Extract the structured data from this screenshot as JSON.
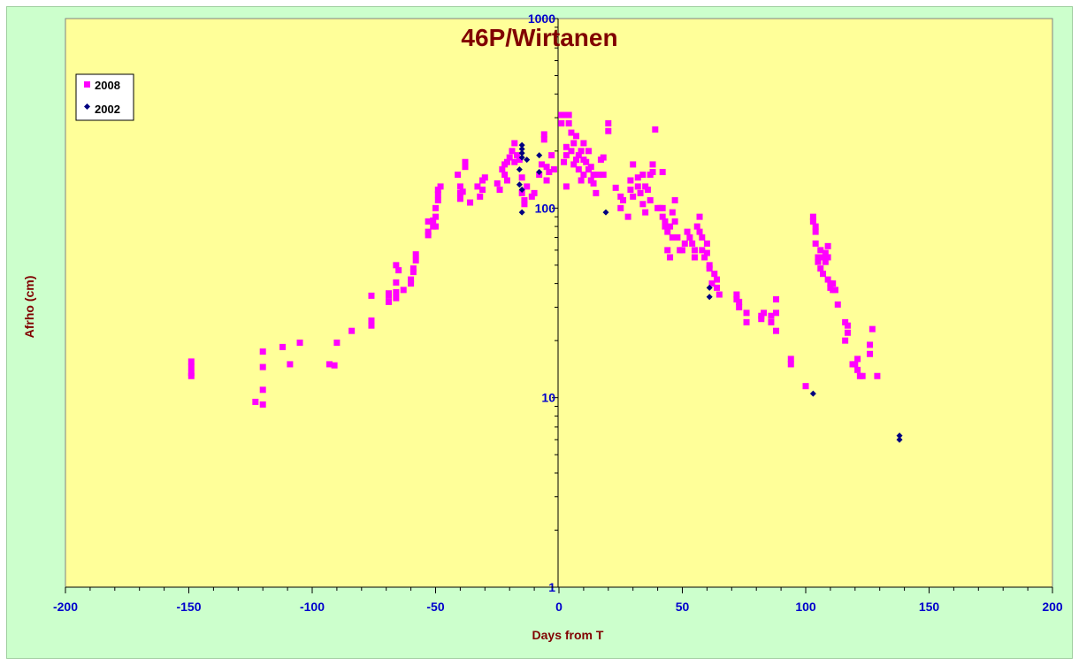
{
  "chart_data": {
    "type": "scatter",
    "title": "46P/Wirtanen",
    "xlabel": "Days from  T",
    "ylabel": "Afrho (cm)",
    "xlim": [
      -200,
      200
    ],
    "ylim": [
      1,
      1000
    ],
    "yscale": "log",
    "x_ticks": [
      -200,
      -150,
      -100,
      -50,
      0,
      50,
      100,
      150,
      200
    ],
    "x_tick_labels": [
      "-200",
      "-150",
      "-100",
      "-50",
      "0",
      "50",
      "100",
      "150",
      "200"
    ],
    "y_ticks": [
      1,
      10,
      100,
      1000
    ],
    "y_tick_labels": [
      "1",
      "10",
      "100",
      "1000"
    ],
    "grid": false,
    "legend_position": "top-left",
    "colors": {
      "plot_bg": "#ffff99",
      "frame_bg": "#ccffcc",
      "s2008": "#ff00ff",
      "s2002": "#000080"
    },
    "series": [
      {
        "name": "2008",
        "marker": "square",
        "color": "#ff00ff",
        "points": [
          [
            -149,
            15.5
          ],
          [
            -149,
            14.5
          ],
          [
            -149,
            13.5
          ],
          [
            -149,
            13
          ],
          [
            -123,
            9.5
          ],
          [
            -120,
            9.2
          ],
          [
            -120,
            11
          ],
          [
            -120,
            14.5
          ],
          [
            -120,
            17.5
          ],
          [
            -112,
            18.5
          ],
          [
            -109,
            15
          ],
          [
            -105,
            19.5
          ],
          [
            -93,
            15
          ],
          [
            -91,
            14.8
          ],
          [
            -90,
            19.5
          ],
          [
            -84,
            22.5
          ],
          [
            -76,
            24
          ],
          [
            -76,
            25.5
          ],
          [
            -76,
            34.5
          ],
          [
            -69,
            32
          ],
          [
            -69,
            34.5
          ],
          [
            -69,
            35.5
          ],
          [
            -66,
            33.5
          ],
          [
            -66,
            36
          ],
          [
            -66,
            40.5
          ],
          [
            -66,
            50
          ],
          [
            -65,
            47
          ],
          [
            -63,
            37
          ],
          [
            -60,
            40
          ],
          [
            -60,
            42
          ],
          [
            -59,
            46
          ],
          [
            -59,
            48
          ],
          [
            -58,
            53
          ],
          [
            -58,
            57
          ],
          [
            -53,
            72
          ],
          [
            -53,
            75
          ],
          [
            -53,
            85
          ],
          [
            -51,
            80
          ],
          [
            -51,
            86
          ],
          [
            -50,
            80
          ],
          [
            -50,
            90
          ],
          [
            -50,
            100
          ],
          [
            -49,
            110
          ],
          [
            -49,
            118
          ],
          [
            -49,
            125
          ],
          [
            -48,
            130
          ],
          [
            -41,
            150
          ],
          [
            -40,
            130
          ],
          [
            -40,
            120
          ],
          [
            -40,
            112
          ],
          [
            -39,
            122
          ],
          [
            -38,
            175
          ],
          [
            -38,
            165
          ],
          [
            -36,
            107
          ],
          [
            -33,
            130
          ],
          [
            -32,
            115
          ],
          [
            -31,
            140
          ],
          [
            -31,
            125
          ],
          [
            -30,
            145
          ],
          [
            -25,
            135
          ],
          [
            -24,
            125
          ],
          [
            -23,
            160
          ],
          [
            -22,
            170
          ],
          [
            -22,
            150
          ],
          [
            -21,
            175
          ],
          [
            -21,
            140
          ],
          [
            -20,
            185
          ],
          [
            -19,
            200
          ],
          [
            -18,
            220
          ],
          [
            -18,
            175
          ],
          [
            -17,
            190
          ],
          [
            -16,
            180
          ],
          [
            -15,
            145
          ],
          [
            -15,
            120
          ],
          [
            -14,
            105
          ],
          [
            -14,
            110
          ],
          [
            -13,
            130
          ],
          [
            -11,
            115
          ],
          [
            -10,
            120
          ],
          [
            -8,
            150
          ],
          [
            -7,
            170
          ],
          [
            -6,
            230
          ],
          [
            -6,
            245
          ],
          [
            -5,
            165
          ],
          [
            -5,
            140
          ],
          [
            -4,
            155
          ],
          [
            -3,
            190
          ],
          [
            -2,
            160
          ],
          [
            1,
            310
          ],
          [
            1,
            280
          ],
          [
            2,
            310
          ],
          [
            2,
            175
          ],
          [
            3,
            190
          ],
          [
            3,
            210
          ],
          [
            3,
            130
          ],
          [
            4,
            280
          ],
          [
            4,
            310
          ],
          [
            5,
            250
          ],
          [
            5,
            200
          ],
          [
            6,
            220
          ],
          [
            6,
            170
          ],
          [
            7,
            240
          ],
          [
            7,
            180
          ],
          [
            8,
            160
          ],
          [
            8,
            190
          ],
          [
            9,
            140
          ],
          [
            9,
            200
          ],
          [
            10,
            220
          ],
          [
            10,
            180
          ],
          [
            10,
            150
          ],
          [
            11,
            175
          ],
          [
            12,
            160
          ],
          [
            12,
            200
          ],
          [
            13,
            165
          ],
          [
            13,
            140
          ],
          [
            14,
            150
          ],
          [
            14,
            135
          ],
          [
            15,
            120
          ],
          [
            16,
            150
          ],
          [
            17,
            180
          ],
          [
            18,
            185
          ],
          [
            18,
            150
          ],
          [
            20,
            280
          ],
          [
            20,
            255
          ],
          [
            23,
            128
          ],
          [
            25,
            115
          ],
          [
            25,
            100
          ],
          [
            26,
            110
          ],
          [
            28,
            90
          ],
          [
            29,
            125
          ],
          [
            29,
            140
          ],
          [
            30,
            170
          ],
          [
            30,
            115
          ],
          [
            32,
            130
          ],
          [
            32,
            145
          ],
          [
            33,
            120
          ],
          [
            34,
            105
          ],
          [
            34,
            150
          ],
          [
            35,
            95
          ],
          [
            35,
            130
          ],
          [
            36,
            125
          ],
          [
            37,
            110
          ],
          [
            37,
            150
          ],
          [
            38,
            155
          ],
          [
            38,
            170
          ],
          [
            39,
            260
          ],
          [
            40,
            100
          ],
          [
            41,
            100
          ],
          [
            42,
            100
          ],
          [
            42,
            155
          ],
          [
            42,
            90
          ],
          [
            43,
            80
          ],
          [
            43,
            85
          ],
          [
            44,
            75
          ],
          [
            44,
            60
          ],
          [
            45,
            55
          ],
          [
            45,
            80
          ],
          [
            46,
            70
          ],
          [
            46,
            95
          ],
          [
            47,
            85
          ],
          [
            47,
            110
          ],
          [
            48,
            70
          ],
          [
            49,
            60
          ],
          [
            50,
            60
          ],
          [
            51,
            65
          ],
          [
            52,
            75
          ],
          [
            53,
            70
          ],
          [
            54,
            65
          ],
          [
            55,
            55
          ],
          [
            55,
            60
          ],
          [
            56,
            80
          ],
          [
            57,
            90
          ],
          [
            57,
            75
          ],
          [
            58,
            70
          ],
          [
            58,
            60
          ],
          [
            59,
            55
          ],
          [
            60,
            65
          ],
          [
            60,
            58
          ],
          [
            61,
            50
          ],
          [
            61,
            48
          ],
          [
            62,
            40
          ],
          [
            63,
            45
          ],
          [
            64,
            42
          ],
          [
            64,
            38
          ],
          [
            65,
            35
          ],
          [
            72,
            35
          ],
          [
            72,
            33
          ],
          [
            73,
            32
          ],
          [
            73,
            30
          ],
          [
            76,
            28
          ],
          [
            76,
            25
          ],
          [
            82,
            27
          ],
          [
            82,
            26
          ],
          [
            83,
            28
          ],
          [
            86,
            25
          ],
          [
            86,
            27
          ],
          [
            88,
            22.5
          ],
          [
            88,
            28
          ],
          [
            88,
            33
          ],
          [
            94,
            16
          ],
          [
            94,
            15
          ],
          [
            100,
            11.5
          ],
          [
            103,
            85
          ],
          [
            103,
            90
          ],
          [
            104,
            80
          ],
          [
            104,
            75
          ],
          [
            104,
            65
          ],
          [
            105,
            55
          ],
          [
            105,
            52
          ],
          [
            106,
            48
          ],
          [
            106,
            60
          ],
          [
            107,
            45
          ],
          [
            107,
            55
          ],
          [
            108,
            52
          ],
          [
            108,
            58
          ],
          [
            109,
            42
          ],
          [
            109,
            63
          ],
          [
            109,
            55
          ],
          [
            110,
            38
          ],
          [
            110,
            40
          ],
          [
            111,
            37
          ],
          [
            111,
            40
          ],
          [
            112,
            37
          ],
          [
            113,
            31
          ],
          [
            116,
            20
          ],
          [
            116,
            25
          ],
          [
            117,
            24
          ],
          [
            117,
            22
          ],
          [
            119,
            15
          ],
          [
            120,
            15
          ],
          [
            121,
            14
          ],
          [
            121,
            16
          ],
          [
            122,
            13
          ],
          [
            123,
            13
          ],
          [
            126,
            19
          ],
          [
            126,
            17
          ],
          [
            127,
            23
          ],
          [
            129,
            13
          ]
        ]
      },
      {
        "name": "2002",
        "marker": "diamond",
        "color": "#000080",
        "points": [
          [
            -15,
            215
          ],
          [
            -15,
            205
          ],
          [
            -15,
            195
          ],
          [
            -15,
            185
          ],
          [
            -16,
            160
          ],
          [
            -16,
            133
          ],
          [
            -15,
            125
          ],
          [
            -15,
            95
          ],
          [
            -13,
            180
          ],
          [
            -8,
            190
          ],
          [
            -8,
            155
          ],
          [
            19,
            95
          ],
          [
            61,
            38
          ],
          [
            61,
            34
          ],
          [
            103,
            10.5
          ],
          [
            138,
            6.3
          ],
          [
            138,
            6.0
          ]
        ]
      }
    ]
  }
}
